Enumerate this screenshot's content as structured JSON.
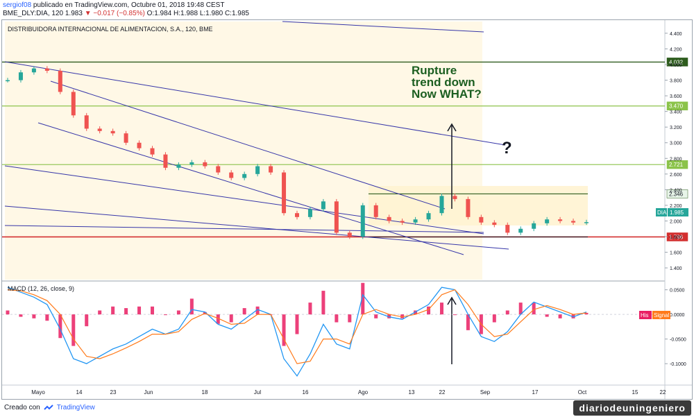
{
  "header": {
    "user": "sergiof08",
    "published": "publicado en TradingView.com, Octubre 01, 2018 19:48 CEST",
    "symbol": "BME_DLY:DIA, 120",
    "last": "1.983",
    "change_arrow": "▼",
    "change": "−0.017 (−0.85%)",
    "ohlc": "O:1.984 H:1.988 L:1.980 C:1.985"
  },
  "instrument_title": "DISTRIBUIDORA INTERNACIONAL DE ALIMENTACION, S.A., 120, BME",
  "annotation": {
    "line1": "Rupture",
    "line2": "trend down",
    "line3": "Now WHAT?",
    "question": "?"
  },
  "macd_title": "MACD (12, 26, close, 9)",
  "labels": {
    "dia": "DIA",
    "dia_price": "1.985",
    "his": "His",
    "signal": "Signal"
  },
  "footer": {
    "created_with": "Creado con",
    "brand": "TradingView"
  },
  "watermark": "diariodeuningeniero",
  "colors": {
    "up": "#26a69a",
    "down": "#ef5350",
    "trend": "#3535a8",
    "resistance": "#2e5c1e",
    "support": "#d32f2f",
    "level_light": "#8bc34a",
    "shade": "#fff3d1",
    "macd": "#2196f3",
    "signal_line": "#ff7a1a",
    "hist": "#e91e63"
  },
  "chart_data": [
    {
      "type": "line",
      "title": "DISTRIBUIDORA INTERNACIONAL DE ALIMENTACION, S.A., 120, BME",
      "x": [
        "Apr 26",
        "May 1",
        "May 4",
        "May 7",
        "May 9",
        "May 14",
        "May 17",
        "May 21",
        "May 23",
        "May 28",
        "Jun 1",
        "Jun 6",
        "Jun 11",
        "Jun 15",
        "Jun 18",
        "Jun 22",
        "Jun 26",
        "Jul 2",
        "Jul 5",
        "Jul 10",
        "Jul 12",
        "Jul 16",
        "Jul 20",
        "Jul 23",
        "Jul 26",
        "Jul 31",
        "Aug 2",
        "Aug 6",
        "Aug 10",
        "Aug 13",
        "Aug 17",
        "Aug 21",
        "Aug 23",
        "Aug 24",
        "Aug 27",
        "Aug 30",
        "Sep 3",
        "Sep 6",
        "Sep 10",
        "Sep 13",
        "Sep 17",
        "Sep 20",
        "Sep 24",
        "Sep 27",
        "Oct 1"
      ],
      "values": [
        3.8,
        3.9,
        3.95,
        3.92,
        3.65,
        3.35,
        3.18,
        3.15,
        3.12,
        3.0,
        2.93,
        2.85,
        2.68,
        2.72,
        2.75,
        2.7,
        2.62,
        2.55,
        2.6,
        2.7,
        2.62,
        2.1,
        2.05,
        2.15,
        2.25,
        1.85,
        1.8,
        2.2,
        2.05,
        2.0,
        1.98,
        2.02,
        2.1,
        2.32,
        2.28,
        2.05,
        1.98,
        1.95,
        1.85,
        1.9,
        1.97,
        2.02,
        2.0,
        1.98,
        1.985
      ],
      "ylim": [
        1.25,
        4.55
      ],
      "ticks_y": [
        "4.400",
        "4.200",
        "4.000",
        "3.800",
        "3.600",
        "3.400",
        "3.200",
        "3.000",
        "2.800",
        "2.600",
        "2.400",
        "2.200",
        "2.000",
        "1.800",
        "1.600",
        "1.400"
      ],
      "ticks_x": [
        "Mayo",
        "14",
        "23",
        "Jun",
        "18",
        "Jul",
        "16",
        "Ago",
        "13",
        "22",
        "Sep",
        "17",
        "Oct",
        "15",
        "22"
      ],
      "levels": [
        {
          "value": 4.032,
          "label": "4.032",
          "style": "dark"
        },
        {
          "value": 3.47,
          "label": "3.470",
          "style": "light"
        },
        {
          "value": 2.721,
          "label": "2.721",
          "style": "light"
        },
        {
          "value": 2.346,
          "label": "2.346",
          "style": "range"
        },
        {
          "value": 1.796,
          "label": "1.796",
          "style": "support"
        }
      ],
      "last_price": 1.985
    },
    {
      "type": "line",
      "title": "MACD (12, 26, close, 9)",
      "x": [
        "Apr 26",
        "May 1",
        "May 4",
        "May 7",
        "May 9",
        "May 14",
        "May 17",
        "May 21",
        "May 23",
        "May 28",
        "Jun 1",
        "Jun 6",
        "Jun 11",
        "Jun 15",
        "Jun 18",
        "Jun 22",
        "Jun 26",
        "Jul 2",
        "Jul 5",
        "Jul 10",
        "Jul 12",
        "Jul 16",
        "Jul 20",
        "Jul 23",
        "Jul 26",
        "Jul 31",
        "Aug 2",
        "Aug 6",
        "Aug 10",
        "Aug 13",
        "Aug 17",
        "Aug 21",
        "Aug 23",
        "Aug 24",
        "Aug 27",
        "Aug 30",
        "Sep 3",
        "Sep 6",
        "Sep 10",
        "Sep 13",
        "Sep 17",
        "Sep 20",
        "Sep 24",
        "Sep 27",
        "Oct 1"
      ],
      "macd": [
        0.055,
        0.045,
        0.035,
        0.02,
        -0.03,
        -0.09,
        -0.1,
        -0.085,
        -0.07,
        -0.06,
        -0.045,
        -0.03,
        -0.04,
        -0.03,
        0.01,
        0.005,
        -0.02,
        -0.03,
        -0.01,
        0.01,
        0.0,
        -0.09,
        -0.125,
        -0.08,
        -0.02,
        -0.06,
        -0.07,
        0.04,
        0.005,
        -0.005,
        -0.01,
        0.005,
        0.02,
        0.055,
        0.05,
        0.0,
        -0.045,
        -0.055,
        -0.035,
        0.0,
        0.025,
        0.015,
        0.005,
        -0.005,
        0.005
      ],
      "signal": [
        0.05,
        0.048,
        0.04,
        0.028,
        0.0,
        -0.05,
        -0.085,
        -0.09,
        -0.08,
        -0.068,
        -0.055,
        -0.04,
        -0.04,
        -0.035,
        -0.01,
        0.002,
        -0.008,
        -0.02,
        -0.018,
        0.0,
        0.0,
        -0.05,
        -0.1,
        -0.095,
        -0.05,
        -0.05,
        -0.06,
        0.0,
        0.01,
        0.0,
        -0.005,
        0.0,
        0.01,
        0.04,
        0.05,
        0.02,
        -0.02,
        -0.045,
        -0.04,
        -0.015,
        0.01,
        0.018,
        0.01,
        0.0,
        0.003
      ],
      "ylim": [
        -0.135,
        0.065
      ],
      "ticks_y": [
        "0.0500",
        "0.0000",
        "-0.0500",
        "-0.1000"
      ]
    }
  ]
}
